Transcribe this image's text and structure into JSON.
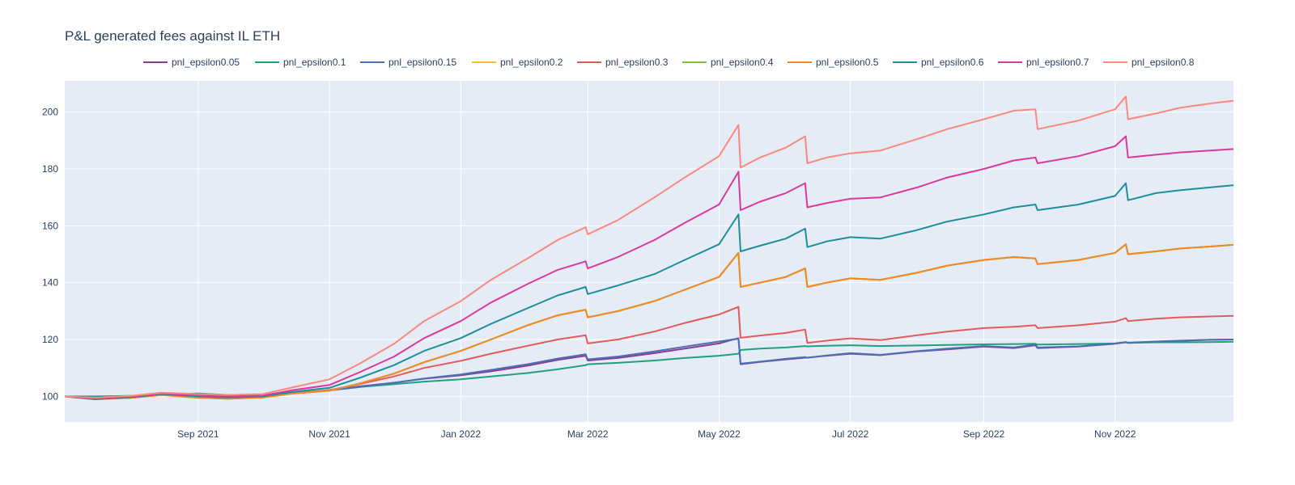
{
  "chart_data": {
    "type": "line",
    "title": "P&L generated fees against IL ETH",
    "xlabel": "",
    "ylabel": "",
    "legend_position": "top",
    "grid": true,
    "xlim": [
      "2021-07-01",
      "2022-12-26"
    ],
    "ylim": [
      91,
      211
    ],
    "x_ticks": [
      {
        "date": "2021-09-01",
        "label": "Sep 2021"
      },
      {
        "date": "2021-11-01",
        "label": "Nov 2021"
      },
      {
        "date": "2022-01-01",
        "label": "Jan 2022"
      },
      {
        "date": "2022-03-01",
        "label": "Mar 2022"
      },
      {
        "date": "2022-05-01",
        "label": "May 2022"
      },
      {
        "date": "2022-07-01",
        "label": "Jul 2022"
      },
      {
        "date": "2022-09-01",
        "label": "Sep 2022"
      },
      {
        "date": "2022-11-01",
        "label": "Nov 2022"
      }
    ],
    "y_ticks": [
      100,
      120,
      140,
      160,
      180,
      200
    ],
    "x": [
      "2021-07-01",
      "2021-07-15",
      "2021-08-01",
      "2021-08-15",
      "2021-09-01",
      "2021-09-15",
      "2021-10-01",
      "2021-10-15",
      "2021-11-01",
      "2021-11-15",
      "2021-12-01",
      "2021-12-15",
      "2022-01-01",
      "2022-01-15",
      "2022-02-01",
      "2022-02-15",
      "2022-02-28",
      "2022-03-01",
      "2022-03-15",
      "2022-04-01",
      "2022-04-15",
      "2022-05-01",
      "2022-05-10",
      "2022-05-11",
      "2022-05-20",
      "2022-06-01",
      "2022-06-10",
      "2022-06-11",
      "2022-06-20",
      "2022-07-01",
      "2022-07-15",
      "2022-08-01",
      "2022-08-15",
      "2022-09-01",
      "2022-09-15",
      "2022-09-25",
      "2022-09-26",
      "2022-10-15",
      "2022-11-01",
      "2022-11-06",
      "2022-11-07",
      "2022-11-20",
      "2022-12-01",
      "2022-12-15",
      "2022-12-26"
    ],
    "series": [
      {
        "name": "pnl_epsilon0.05",
        "color": "#8c3c93",
        "values": [
          100,
          99.5,
          100,
          100.5,
          100.5,
          100,
          100.2,
          101,
          102.2,
          103.5,
          104.8,
          106.2,
          107.4,
          108.8,
          110.8,
          112.8,
          114.3,
          112.6,
          113.5,
          115.2,
          116.8,
          118.6,
          120.5,
          111.3,
          112.1,
          113,
          113.6,
          113.6,
          114.3,
          115,
          114.5,
          115.8,
          116.5,
          117.5,
          117,
          118,
          117,
          117.5,
          118.5,
          119,
          118.8,
          119.2,
          119.5,
          119.9,
          120
        ]
      },
      {
        "name": "pnl_epsilon0.1",
        "color": "#20a17e",
        "values": [
          100,
          100,
          100.2,
          100.5,
          101,
          100.5,
          100.5,
          101.2,
          102.2,
          103.3,
          104.3,
          105.2,
          106,
          107,
          108.2,
          109.5,
          111,
          111.3,
          111.8,
          112.6,
          113.5,
          114.3,
          115,
          116.3,
          116.8,
          117.2,
          117.7,
          117.6,
          117.8,
          118,
          117.7,
          117.9,
          118.1,
          118.3,
          118.4,
          118.5,
          118.2,
          118.4,
          118.6,
          119.1,
          118.8,
          119,
          119,
          119.1,
          119.2
        ]
      },
      {
        "name": "pnl_epsilon0.15",
        "color": "#4c6eb4",
        "values": [
          100,
          99.3,
          99.8,
          100.5,
          100.3,
          99.8,
          100.1,
          101,
          102.1,
          103.3,
          104.8,
          106.3,
          107.7,
          109.3,
          111.3,
          113.3,
          114.8,
          113,
          114,
          115.8,
          117.5,
          119.3,
          120.3,
          111.5,
          112.2,
          113.2,
          113.8,
          113.6,
          114.4,
          115.2,
          114.6,
          115.9,
          116.8,
          117.7,
          117.2,
          118.2,
          117.2,
          117.6,
          118.6,
          119.1,
          118.9,
          119.3,
          119.6,
          119.9,
          120
        ]
      },
      {
        "name": "pnl_epsilon0.2",
        "color": "#eebf2a",
        "values": [
          100,
          99,
          99.5,
          100.5,
          99.5,
          99.2,
          99.6,
          101,
          102,
          104.5,
          108,
          112,
          116,
          120,
          125,
          128.5,
          130.5,
          127.8,
          130,
          133.5,
          137.5,
          142,
          150.5,
          138.5,
          140,
          142,
          145,
          138.5,
          140,
          141.5,
          141,
          143.5,
          146,
          148,
          149,
          148.5,
          146.5,
          148,
          150.5,
          153.5,
          150,
          151,
          152,
          152.7,
          153.3
        ]
      },
      {
        "name": "pnl_epsilon0.3",
        "color": "#e15b5a",
        "values": [
          100,
          99,
          99.5,
          100.5,
          99.8,
          99.4,
          99.8,
          101,
          102.2,
          104.3,
          107,
          110,
          112.5,
          115,
          117.8,
          120,
          121.5,
          118.6,
          120,
          122.8,
          125.8,
          128.8,
          131.5,
          120.6,
          121.4,
          122.3,
          123.5,
          118.8,
          119.6,
          120.4,
          119.8,
          121.5,
          122.8,
          124,
          124.5,
          125,
          124,
          125,
          126.3,
          127.5,
          126.5,
          127.3,
          127.8,
          128.1,
          128.3
        ]
      },
      {
        "name": "pnl_epsilon0.4",
        "color": "#7fc241",
        "values": [
          100,
          99,
          99.5,
          100.5,
          99.5,
          99.2,
          99.6,
          101,
          102,
          104.5,
          108,
          112,
          116,
          120,
          125,
          128.5,
          130.5,
          127.8,
          130,
          133.5,
          137.5,
          142,
          150.5,
          138.5,
          140,
          142,
          145,
          138.5,
          140,
          141.5,
          141,
          143.5,
          146,
          148,
          149,
          148.5,
          146.5,
          148,
          150.5,
          153.5,
          150,
          151,
          152,
          152.7,
          153.3
        ]
      },
      {
        "name": "pnl_epsilon0.5",
        "color": "#f48726",
        "values": [
          100,
          99,
          99.5,
          100.5,
          99.5,
          99.2,
          99.6,
          101,
          102,
          104.5,
          108,
          112,
          116,
          120,
          125,
          128.5,
          130.5,
          127.8,
          130,
          133.5,
          137.5,
          142,
          150.5,
          138.5,
          140,
          142,
          145,
          138.5,
          140,
          141.5,
          141,
          143.5,
          146,
          148,
          149,
          148.5,
          146.5,
          148,
          150.5,
          153.5,
          150,
          151,
          152,
          152.7,
          153.3
        ]
      },
      {
        "name": "pnl_epsilon0.6",
        "color": "#1d8e9b",
        "values": [
          100,
          99,
          99.7,
          100.8,
          100,
          99.6,
          100,
          101.6,
          103,
          106.5,
          111,
          116,
          120.5,
          125.5,
          131,
          135.5,
          138.5,
          136,
          139,
          143,
          148,
          153.5,
          164,
          151,
          153,
          155.5,
          159,
          152.5,
          154.5,
          156,
          155.5,
          158.5,
          161.5,
          164,
          166.5,
          167.5,
          165.5,
          167.5,
          170.5,
          175,
          169,
          171.5,
          172.5,
          173.5,
          174.3
        ]
      },
      {
        "name": "pnl_epsilon0.7",
        "color": "#d9399c",
        "values": [
          100,
          99.2,
          99.9,
          101,
          100.3,
          100,
          100.3,
          102.2,
          104,
          108.5,
          114,
          120.5,
          126.5,
          133,
          139.5,
          144.5,
          147.5,
          145,
          149,
          155,
          161,
          167.5,
          179,
          165.5,
          168.5,
          171.5,
          175,
          166.5,
          168,
          169.5,
          170,
          173.5,
          177,
          180,
          183,
          184,
          182,
          184.5,
          188,
          191.5,
          184,
          185,
          185.8,
          186.5,
          187
        ]
      },
      {
        "name": "pnl_epsilon0.8",
        "color": "#f9897f",
        "values": [
          100,
          99.5,
          100.2,
          101.3,
          100.8,
          100.5,
          100.8,
          103.2,
          106,
          111.5,
          118.5,
          126.5,
          133.5,
          141,
          148.5,
          155,
          159.5,
          157,
          162,
          170,
          177,
          184.5,
          195.5,
          180.5,
          184,
          187.5,
          191.5,
          182,
          184,
          185.5,
          186.5,
          190.5,
          194,
          197.5,
          200.5,
          201,
          194,
          197,
          201,
          205.5,
          197.5,
          199.5,
          201.5,
          203,
          204
        ]
      }
    ]
  }
}
